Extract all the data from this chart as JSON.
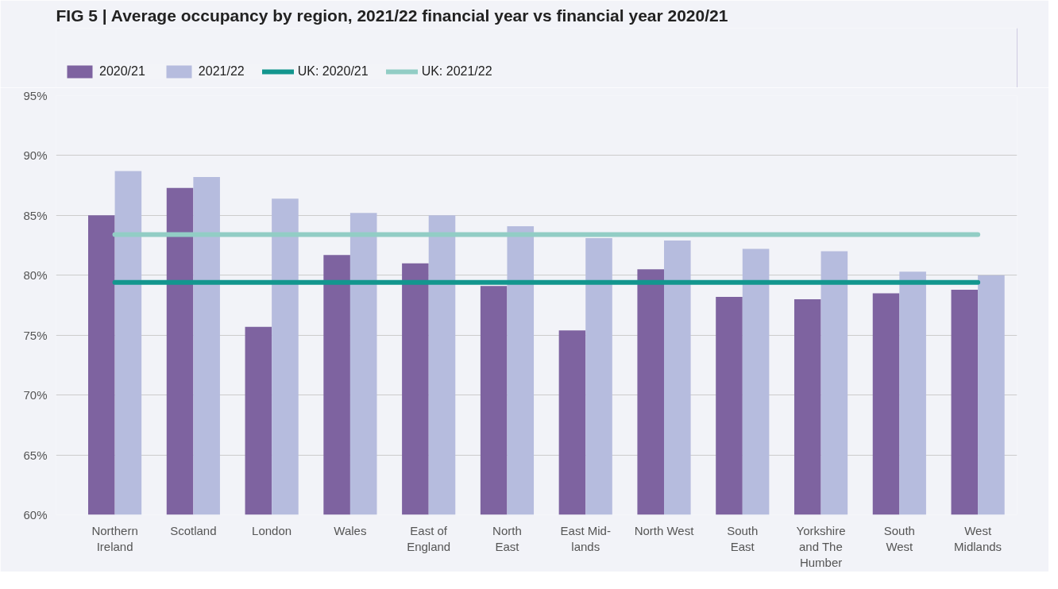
{
  "chart_data": {
    "type": "bar",
    "title": "FIG 5 | Average occupancy by region, 2021/22 financial year vs financial year 2020/21",
    "categories": [
      "Northern\nIreland",
      "Scotland",
      "London",
      "Wales",
      "East of\nEngland",
      "North\nEast",
      "East Mid-\nlands",
      "North West",
      "South\nEast",
      "Yorkshire\nand The\nHumber",
      "South\nWest",
      "West\nMidlands"
    ],
    "series": [
      {
        "name": "2020/21",
        "color": "#7e63a0",
        "values": [
          85.0,
          87.3,
          75.7,
          81.7,
          81.0,
          79.1,
          75.4,
          80.5,
          78.2,
          78.0,
          78.5,
          78.8
        ]
      },
      {
        "name": "2021/22",
        "color": "#b6bcde",
        "values": [
          88.7,
          88.2,
          86.4,
          85.2,
          85.0,
          84.1,
          83.1,
          82.9,
          82.2,
          82.0,
          80.3,
          80.0
        ]
      },
      {
        "name": "UK: 2020/21",
        "type": "line",
        "color": "#13968e",
        "values": [
          79.4,
          79.4,
          79.4,
          79.4,
          79.4,
          79.4,
          79.4,
          79.4,
          79.4,
          79.4,
          79.4,
          79.4
        ]
      },
      {
        "name": "UK: 2021/22",
        "type": "line",
        "color": "#92cdc5",
        "values": [
          83.4,
          83.4,
          83.4,
          83.4,
          83.4,
          83.4,
          83.4,
          83.4,
          83.4,
          83.4,
          83.4,
          83.4
        ]
      }
    ],
    "ylim": [
      60,
      95
    ],
    "yticks": [
      {
        "value": 60,
        "label": "60%"
      },
      {
        "value": 65,
        "label": "65%"
      },
      {
        "value": 70,
        "label": "70%"
      },
      {
        "value": 75,
        "label": "75%"
      },
      {
        "value": 80,
        "label": "80%"
      },
      {
        "value": 85,
        "label": "85%"
      },
      {
        "value": 90,
        "label": "90%"
      },
      {
        "value": 95,
        "label": "95%"
      }
    ],
    "grid": "y",
    "legend": "top left"
  }
}
